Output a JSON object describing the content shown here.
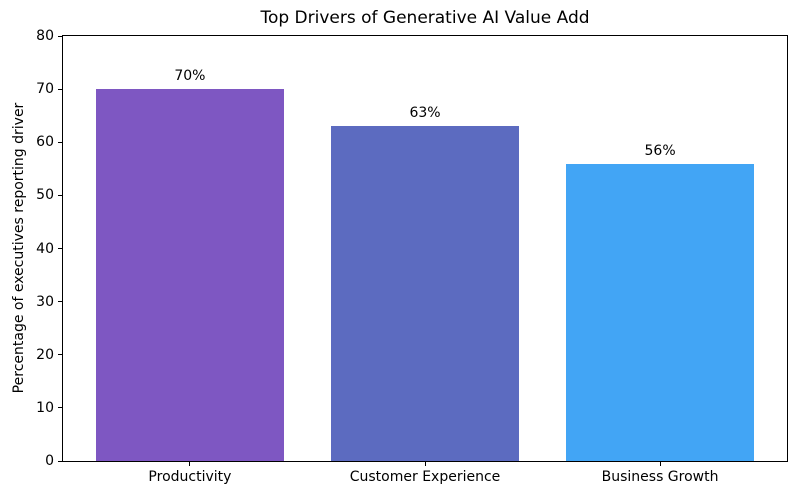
{
  "chart_data": {
    "type": "bar",
    "title": "Top Drivers of Generative AI Value Add",
    "xlabel": "",
    "ylabel": "Percentage of executives reporting driver",
    "categories": [
      "Productivity",
      "Customer Experience",
      "Business Growth"
    ],
    "values": [
      70,
      63,
      56
    ],
    "value_labels": [
      "70%",
      "63%",
      "56%"
    ],
    "bar_colors": [
      "#7E57C2",
      "#5C6BC0",
      "#42A5F5"
    ],
    "ylim": [
      0,
      80
    ],
    "yticks": [
      0,
      10,
      20,
      30,
      40,
      50,
      60,
      70,
      80
    ],
    "ytick_labels": [
      "0",
      "10",
      "20",
      "30",
      "40",
      "50",
      "60",
      "70",
      "80"
    ],
    "grid": false,
    "legend": null,
    "frame": "full-box",
    "background_color": "#ffffff",
    "axis_color": "#000000",
    "text_color": "#000000"
  }
}
